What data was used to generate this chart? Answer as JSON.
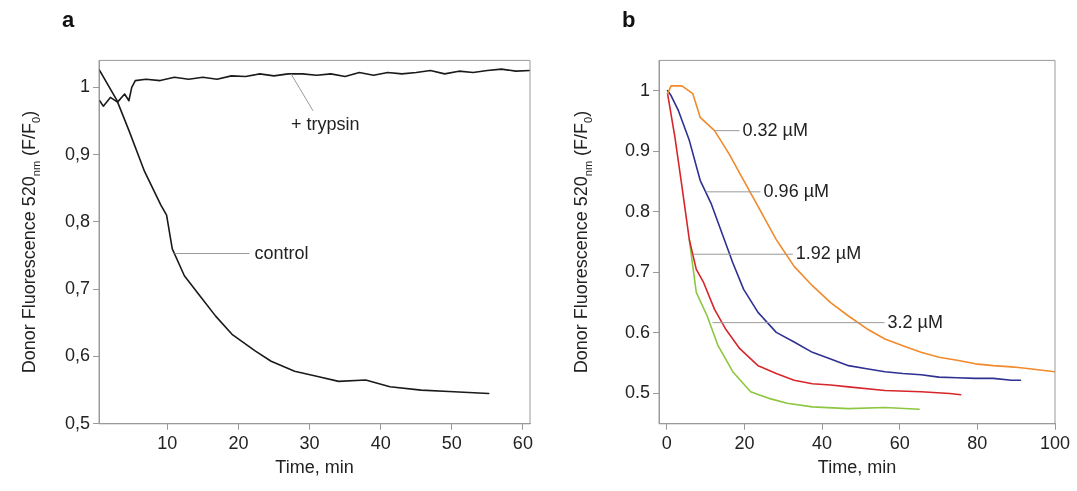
{
  "chart_data": [
    {
      "type": "line",
      "title": "a",
      "xlabel": "Time, min",
      "ylabel": "Donor Fluorescence 520$_{nm}$ (F/F$_{0}$)",
      "xlim": [
        0.4,
        61
      ],
      "ylim": [
        0.5,
        1.04
      ],
      "xticks": [
        10,
        20,
        30,
        40,
        50,
        60
      ],
      "yticks": [
        {
          "value": 0.5,
          "label": "0,5"
        },
        {
          "value": 0.6,
          "label": "0,6"
        },
        {
          "value": 0.7,
          "label": "0,7"
        },
        {
          "value": 0.8,
          "label": "0,8"
        },
        {
          "value": 0.9,
          "label": "0,9"
        },
        1
      ],
      "marker": "none",
      "line_style": "solid",
      "legend": false,
      "series": [
        {
          "color": "#1a1a1a",
          "x": [
            0.44,
            2.9,
            4.6,
            6.8,
            9.1,
            9.9,
            10.7,
            12.4,
            14.6,
            16.8,
            19.1,
            22.4,
            24.6,
            27.9,
            31.3,
            34.1,
            37.9,
            41.3,
            45.7,
            49.6,
            55.2
          ],
          "values": [
            1.026,
            0.981,
            0.936,
            0.875,
            0.825,
            0.81,
            0.76,
            0.72,
            0.69,
            0.66,
            0.633,
            0.608,
            0.593,
            0.578,
            0.57,
            0.563,
            0.565,
            0.555,
            0.55,
            0.548,
            0.545
          ]
        },
        {
          "color": "#1a1a1a",
          "x": [
            0.5,
            1,
            2,
            3,
            4,
            4.6,
            5,
            5.5,
            7,
            9,
            11,
            13,
            15,
            17,
            19,
            21,
            23,
            25,
            27,
            29,
            31,
            33,
            35,
            37,
            39,
            41,
            43,
            45,
            47,
            49,
            51,
            53,
            55,
            57,
            59,
            61
          ],
          "values": [
            0.98,
            0.972,
            0.985,
            0.978,
            0.99,
            0.98,
            1.0,
            1.01,
            1.012,
            1.01,
            1.015,
            1.012,
            1.015,
            1.012,
            1.017,
            1.016,
            1.02,
            1.017,
            1.02,
            1.02,
            1.018,
            1.02,
            1.016,
            1.022,
            1.018,
            1.022,
            1.02,
            1.022,
            1.025,
            1.02,
            1.024,
            1.022,
            1.025,
            1.027,
            1.024,
            1.025
          ]
        }
      ],
      "annotations": [
        {
          "text": "+ trypsin",
          "x": 27.4,
          "y": 1.02
        },
        {
          "text": "control",
          "x": 11,
          "y": 0.753
        }
      ]
    },
    {
      "type": "line",
      "title": "b",
      "xlabel": "Time, min",
      "ylabel": "Donor Fluorescence 520$_{nm}$ (F/F$_{0}$)",
      "xlim": [
        -2,
        100
      ],
      "ylim": [
        0.45,
        1.05
      ],
      "xticks": [
        0,
        20,
        40,
        60,
        80,
        100
      ],
      "yticks": [
        0.5,
        0.6,
        0.7,
        0.8,
        0.9,
        1
      ],
      "marker": "none",
      "line_style": "solid",
      "legend": false,
      "series": [
        {
          "color": "#f08a2c",
          "x": [
            0.2,
            1.1,
            3.9,
            6.7,
            8.6,
            12.3,
            16,
            19.8,
            23.5,
            28.2,
            32.8,
            37.5,
            42.2,
            46.8,
            51.5,
            56.2,
            60.8,
            65.5,
            70.1,
            74.8,
            79.5,
            84.1,
            88.8,
            93.5,
            97.2,
            100
          ],
          "values": [
            0.995,
            1.008,
            1.008,
            0.995,
            0.956,
            0.934,
            0.896,
            0.852,
            0.809,
            0.754,
            0.71,
            0.678,
            0.65,
            0.628,
            0.607,
            0.59,
            0.579,
            0.568,
            0.56,
            0.555,
            0.549,
            0.546,
            0.544,
            0.541,
            0.538,
            0.536
          ]
        },
        {
          "color": "#2e3192",
          "x": [
            0.2,
            1.1,
            3,
            5.8,
            8.6,
            11.4,
            14.2,
            17,
            19.8,
            23.5,
            28.2,
            32.8,
            37.5,
            42.2,
            46.8,
            51.5,
            56.2,
            60.8,
            65.5,
            70.1,
            74.8,
            79.5,
            84.1,
            88.8,
            91.1
          ],
          "values": [
            1.0,
            0.992,
            0.967,
            0.918,
            0.852,
            0.814,
            0.765,
            0.716,
            0.672,
            0.634,
            0.601,
            0.585,
            0.568,
            0.557,
            0.546,
            0.541,
            0.536,
            0.533,
            0.531,
            0.527,
            0.526,
            0.525,
            0.525,
            0.522,
            0.522
          ]
        },
        {
          "color": "#d7262b",
          "x": [
            0.2,
            2.1,
            3.9,
            5.8,
            7.6,
            9.5,
            12.3,
            15.1,
            18.8,
            23.5,
            28.2,
            32.8,
            37.5,
            42.2,
            46.8,
            56.2,
            65.5,
            72.9,
            75.7
          ],
          "values": [
            0.995,
            0.923,
            0.842,
            0.754,
            0.705,
            0.683,
            0.639,
            0.607,
            0.574,
            0.546,
            0.533,
            0.522,
            0.516,
            0.514,
            0.511,
            0.505,
            0.503,
            0.5,
            0.498
          ]
        },
        {
          "color": "#8dc63f",
          "x": [
            5.8,
            7.6,
            10.4,
            13.2,
            17,
            21.6,
            26.3,
            31,
            37.5,
            46.8,
            56.2,
            65
          ],
          "values": [
            0.754,
            0.667,
            0.628,
            0.579,
            0.536,
            0.503,
            0.492,
            0.484,
            0.478,
            0.475,
            0.477,
            0.474
          ]
        }
      ],
      "annotations": [
        {
          "text": "0.32 µM",
          "x": 12.3,
          "y": 0.934
        },
        {
          "text": "0.96 µM",
          "x": 10,
          "y": 0.833
        },
        {
          "text": "1.92 µM",
          "x": 6.7,
          "y": 0.73
        },
        {
          "text": "3.2 µM",
          "x": 11.8,
          "y": 0.617
        }
      ]
    }
  ]
}
